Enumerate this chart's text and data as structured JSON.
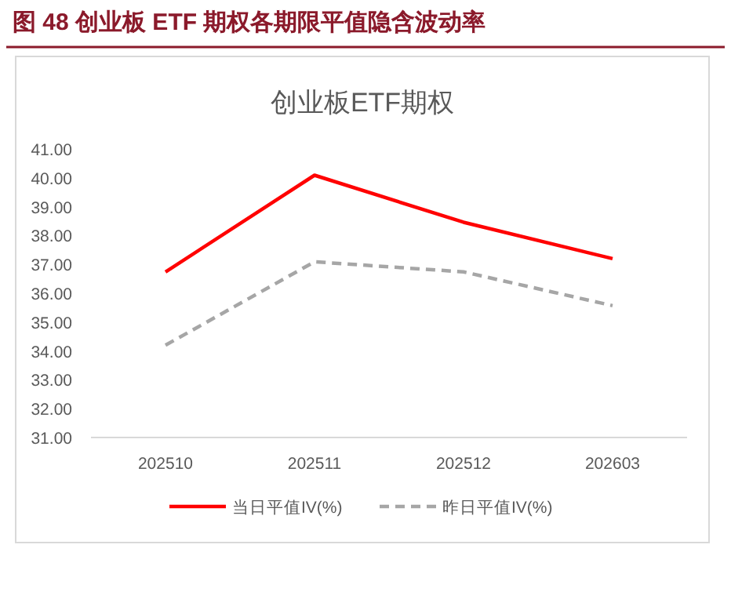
{
  "chart_data": {
    "type": "line",
    "title": "图 48  创业板 ETF 期权各期限平值隐含波动率",
    "subtitle": "创业板ETF期权",
    "categories": [
      "202510",
      "202511",
      "202512",
      "202603"
    ],
    "series": [
      {
        "name": "当日平值IV(%)",
        "color": "#ff0000",
        "line_style": "solid",
        "values": [
          36.74,
          40.09,
          38.46,
          37.2
        ]
      },
      {
        "name": "昨日平值IV(%)",
        "color": "#a6a6a6",
        "line_style": "dashed",
        "values": [
          34.2,
          37.09,
          36.74,
          35.57
        ]
      }
    ],
    "ylim": [
      31,
      41
    ],
    "yticks": [
      {
        "value": 31,
        "label": "31.00"
      },
      {
        "value": 32,
        "label": "32.00"
      },
      {
        "value": 33,
        "label": "33.00"
      },
      {
        "value": 34,
        "label": "34.00"
      },
      {
        "value": 35,
        "label": "35.00"
      },
      {
        "value": 36,
        "label": "36.00"
      },
      {
        "value": 37,
        "label": "37.00"
      },
      {
        "value": 38,
        "label": "38.00"
      },
      {
        "value": 39,
        "label": "39.00"
      },
      {
        "value": 40,
        "label": "40.00"
      },
      {
        "value": 41,
        "label": "41.00"
      }
    ],
    "grid": false,
    "legend": "bottom",
    "marker": "none"
  }
}
